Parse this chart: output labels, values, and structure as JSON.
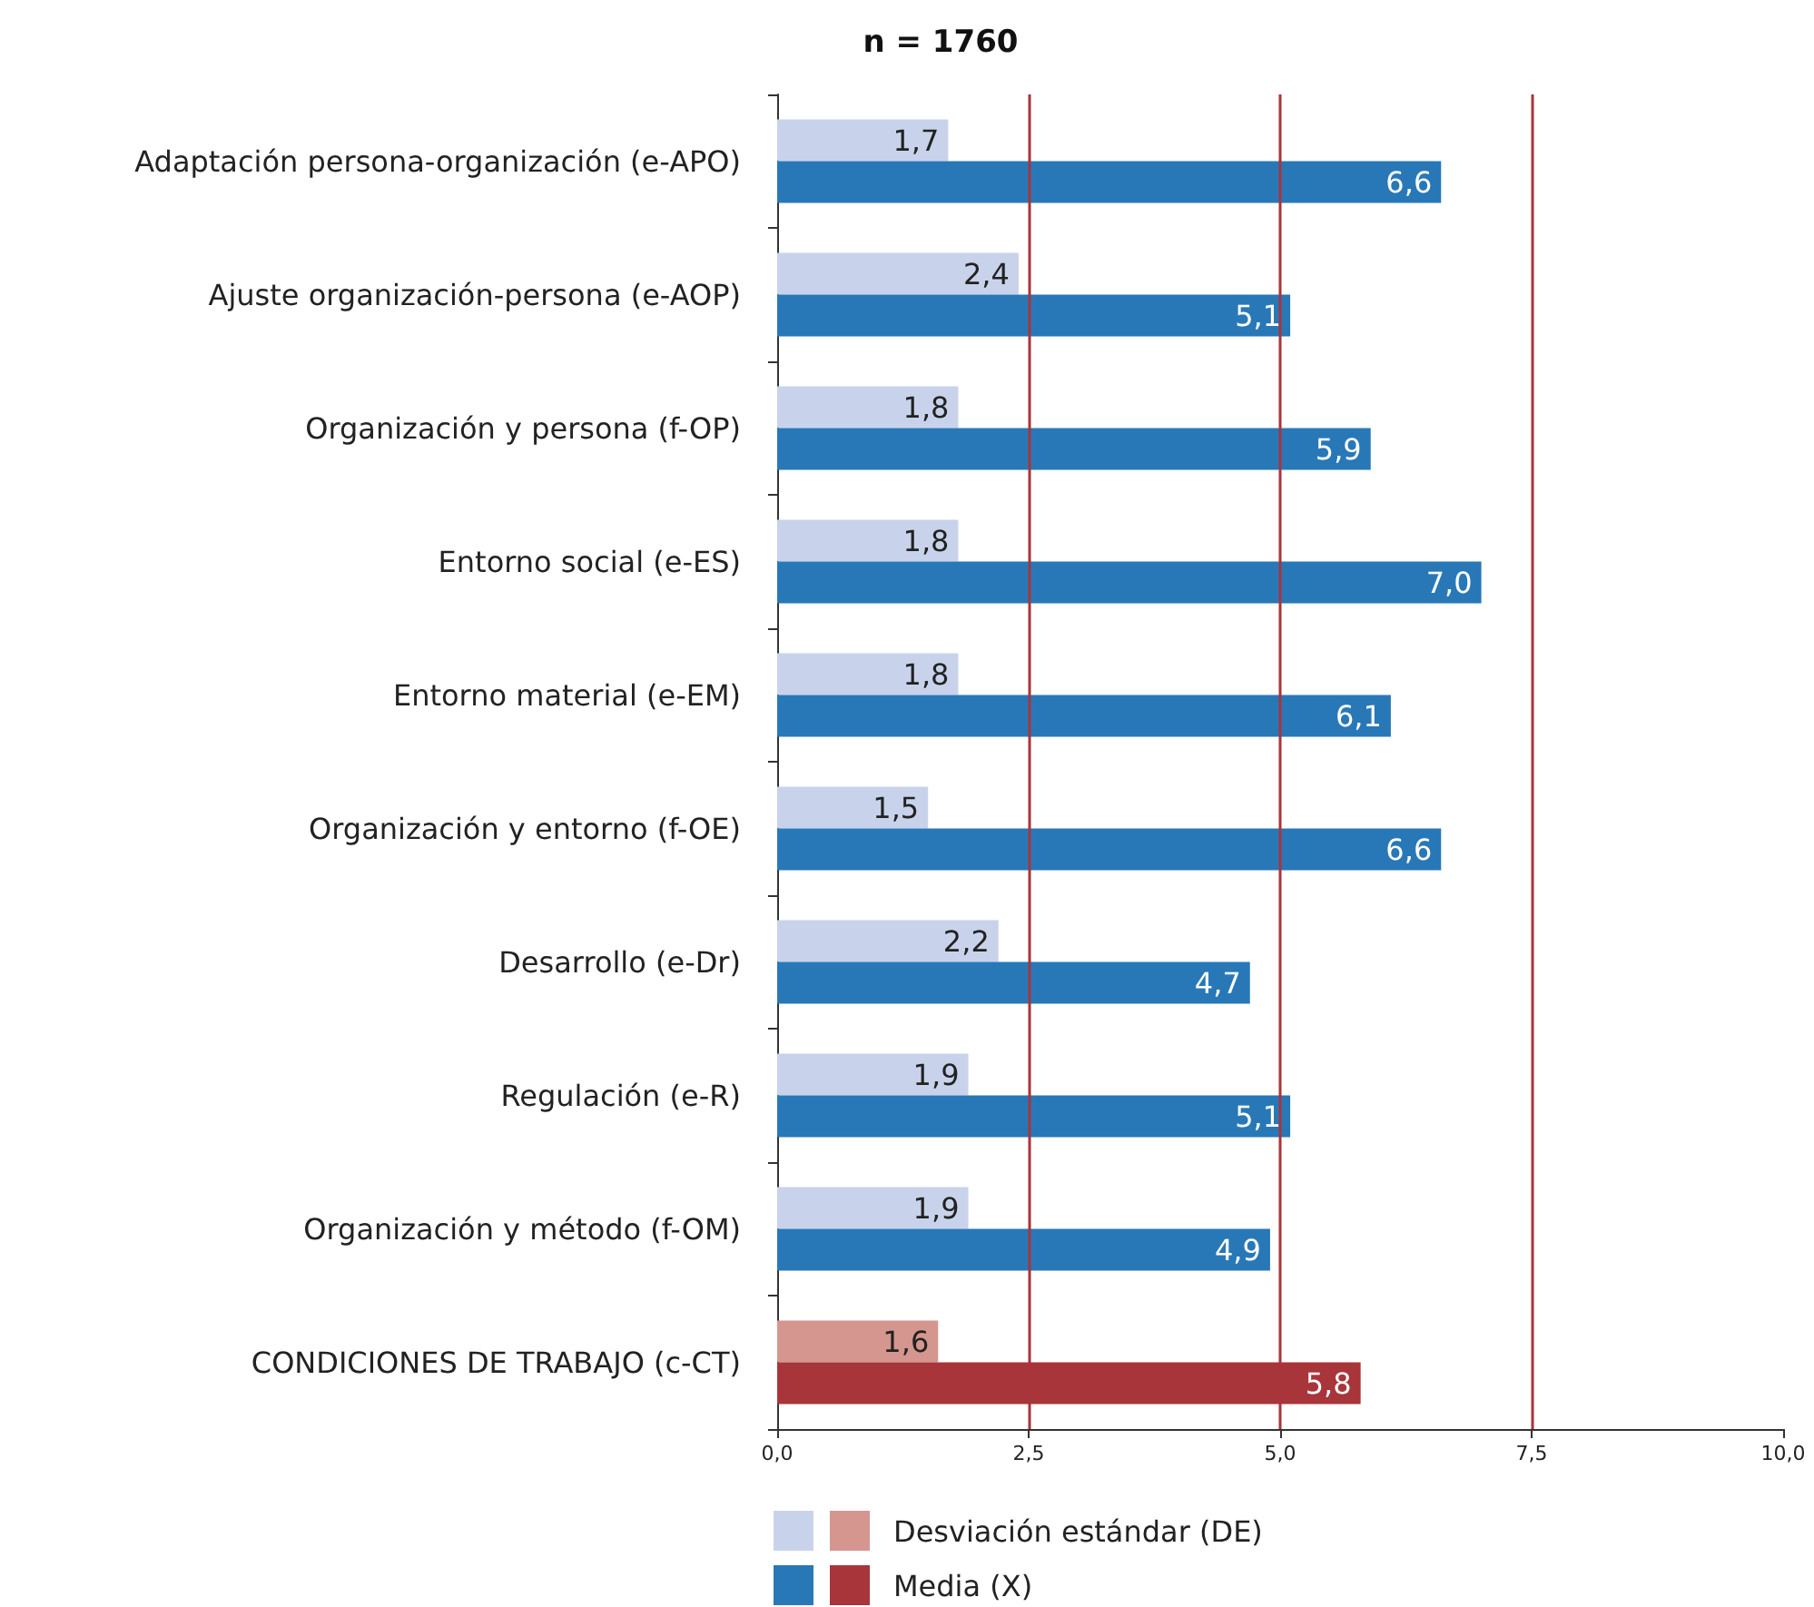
{
  "chart_data": {
    "type": "bar",
    "orientation": "horizontal",
    "title": "n = 1760",
    "categories": [
      "Adaptación persona-organización (e-APO)",
      "Ajuste organización-persona (e-AOP)",
      "Organización y persona (f-OP)",
      "Entorno social (e-ES)",
      "Entorno material (e-EM)",
      "Organización y entorno (f-OE)",
      "Desarrollo (e-Dr)",
      "Regulación (e-R)",
      "Organización y método (f-OM)",
      "CONDICIONES DE TRABAJO (c-CT)"
    ],
    "series": [
      {
        "name": "Desviación estándar (DE)",
        "colors": [
          "#c8d3eb",
          "#c8d3eb",
          "#c8d3eb",
          "#c8d3eb",
          "#c8d3eb",
          "#c8d3eb",
          "#c8d3eb",
          "#c8d3eb",
          "#c8d3eb",
          "#d4968f"
        ],
        "values": [
          1.7,
          2.4,
          1.8,
          1.8,
          1.8,
          1.5,
          2.2,
          1.9,
          1.9,
          1.6
        ],
        "value_labels": [
          "1,7",
          "2,4",
          "1,8",
          "1,8",
          "1,8",
          "1,5",
          "2,2",
          "1,9",
          "1,9",
          "1,6"
        ]
      },
      {
        "name": "Media (X)",
        "colors": [
          "#2878b8",
          "#2878b8",
          "#2878b8",
          "#2878b8",
          "#2878b8",
          "#2878b8",
          "#2878b8",
          "#2878b8",
          "#2878b8",
          "#a8353a"
        ],
        "values": [
          6.6,
          5.1,
          5.9,
          7.0,
          6.1,
          6.6,
          4.7,
          5.1,
          4.9,
          5.8
        ],
        "value_labels": [
          "6,6",
          "5,1",
          "5,9",
          "7,0",
          "6,1",
          "6,6",
          "4,7",
          "5,1",
          "4,9",
          "5,8"
        ]
      }
    ],
    "xlim": [
      0,
      10
    ],
    "xticks": [
      {
        "value": 0,
        "label": "0,0"
      },
      {
        "value": 2.5,
        "label": "2,5"
      },
      {
        "value": 5,
        "label": "5,0"
      },
      {
        "value": 7.5,
        "label": "7,5"
      },
      {
        "value": 10,
        "label": "10,0"
      }
    ],
    "ref_lines": [
      {
        "axis": "x",
        "value": 2.5,
        "color": "#a8353a"
      },
      {
        "axis": "x",
        "value": 5,
        "color": "#a8353a"
      },
      {
        "axis": "x",
        "value": 7.5,
        "color": "#a8353a"
      }
    ],
    "grid": false,
    "legend": "bottom"
  }
}
